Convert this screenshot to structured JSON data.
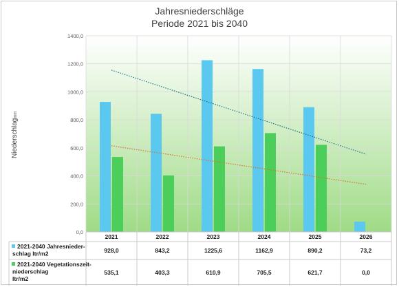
{
  "chart_data": {
    "type": "bar",
    "title": "Jahresniederschläge",
    "subtitle": "Periode 2021 bis 2040",
    "ylabel": "Niederschlag",
    "ylabel_unit": "mm",
    "categories": [
      "2021",
      "2022",
      "2023",
      "2024",
      "2025",
      "2026"
    ],
    "ylim": [
      0,
      1400
    ],
    "yticks": [
      "0,0",
      "200,0",
      "400,0",
      "600,0",
      "800,0",
      "1000,0",
      "1200,0",
      "1400,0"
    ],
    "grid": true,
    "legend_placement": "bottom data table",
    "series": [
      {
        "name": "2021-2040 Jahresnieder-schlag ltr/m2",
        "name_lines": [
          "2021-2040 Jahresnieder-",
          "schlag ltr/m2"
        ],
        "values": [
          928.0,
          843.2,
          1225.6,
          1162.9,
          890.2,
          73.2
        ],
        "labels": [
          "928,0",
          "843,2",
          "1225,6",
          "1162,9",
          "890,2",
          "73,2"
        ],
        "color": "#5bc8f0",
        "trendline": {
          "from": 1155,
          "to": 555,
          "color": "#1a6f80"
        }
      },
      {
        "name": "2021-2040 Vegetationszeit-niederschlag ltr/m2",
        "name_lines": [
          "2021-2040 Vegetationszeit-",
          "niederschlag",
          "ltr/m2"
        ],
        "values": [
          535.1,
          403.3,
          610.9,
          705.5,
          621.7,
          0.0
        ],
        "labels": [
          "535,1",
          "403,3",
          "610,9",
          "705,5",
          "621,7",
          "0,0"
        ],
        "color": "#4ccf5a",
        "trendline": {
          "from": 615,
          "to": 340,
          "color": "#e0702a"
        }
      }
    ]
  }
}
